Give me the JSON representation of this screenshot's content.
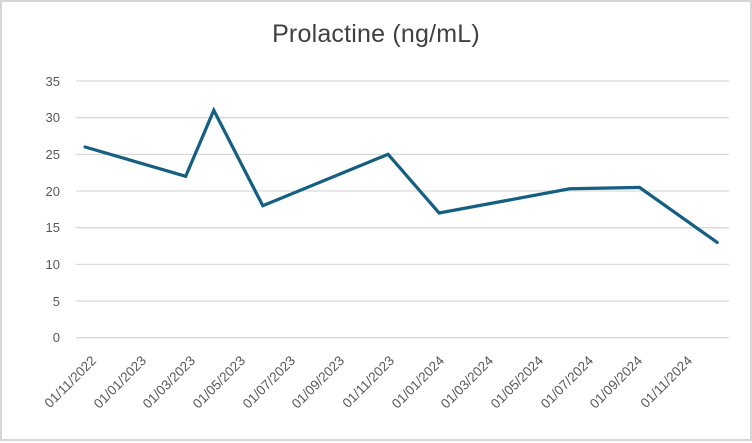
{
  "chart_data": {
    "type": "line",
    "title": "Prolactine (ng/mL)",
    "xlabel": "",
    "ylabel": "",
    "ylim": [
      0,
      35
    ],
    "y_ticks": [
      35,
      30,
      25,
      20,
      15,
      10,
      5,
      0
    ],
    "x_tick_labels": [
      "01/11/2022",
      "01/01/2023",
      "01/03/2023",
      "01/05/2023",
      "01/07/2023",
      "01/09/2023",
      "01/11/2023",
      "01/01/2024",
      "01/03/2024",
      "01/05/2024",
      "01/07/2024",
      "01/09/2024",
      "01/11/2024"
    ],
    "grid": "horizontal",
    "legend": "none",
    "x_axis_note": "Date axis with bimonthly tick labels; x_frac is each sample's fractional position across the plot area (samples fall between labeled ticks).",
    "series": [
      {
        "name": "Prolactine (ng/mL)",
        "points": [
          {
            "x_frac": 0.014,
            "value": 26
          },
          {
            "x_frac": 0.168,
            "value": 22
          },
          {
            "x_frac": 0.211,
            "value": 31
          },
          {
            "x_frac": 0.286,
            "value": 18
          },
          {
            "x_frac": 0.478,
            "value": 25
          },
          {
            "x_frac": 0.556,
            "value": 17
          },
          {
            "x_frac": 0.756,
            "value": 20.3
          },
          {
            "x_frac": 0.863,
            "value": 20.5
          },
          {
            "x_frac": 0.982,
            "value": 13
          }
        ]
      }
    ]
  },
  "colors": {
    "line": "#156082",
    "gridline": "#d9d9d9",
    "title_text": "#404040",
    "axis_text": "#595959",
    "chart_border": "#d6d6d6",
    "background": "#ffffff"
  }
}
